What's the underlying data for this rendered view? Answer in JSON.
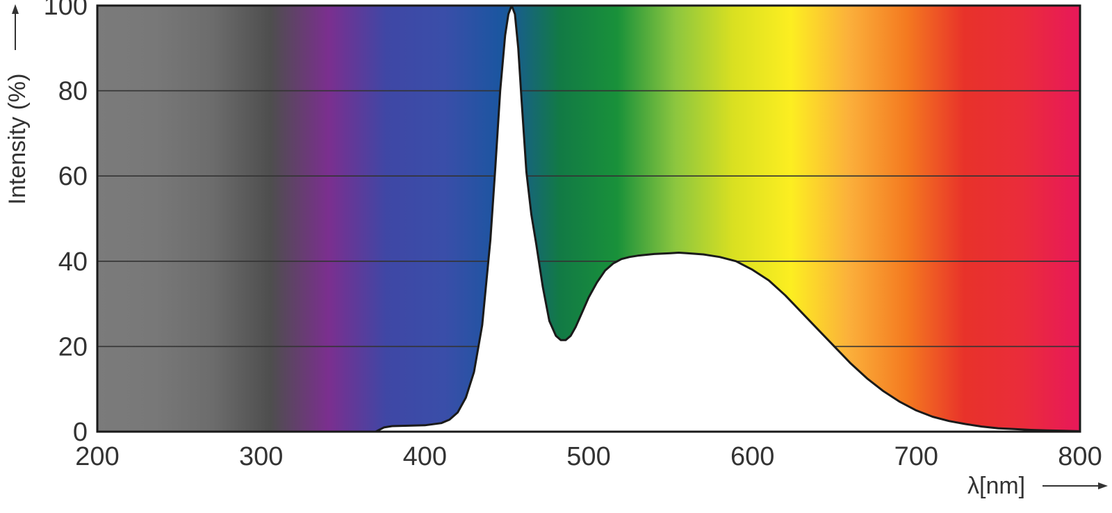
{
  "chart_data": {
    "type": "area",
    "title": "",
    "xlabel": "λ[nm]",
    "ylabel": "Intensity (%)",
    "xlim": [
      200,
      800
    ],
    "ylim": [
      0,
      100
    ],
    "grid": true,
    "x_ticks": [
      200,
      300,
      400,
      500,
      600,
      700,
      800
    ],
    "y_ticks": [
      0,
      20,
      40,
      60,
      80,
      100
    ],
    "series": [
      {
        "x": [
          370,
          375,
          380,
          390,
          400,
          410,
          415,
          420,
          425,
          430,
          435,
          440,
          443,
          446,
          449,
          451,
          453,
          455,
          457,
          459,
          462,
          465,
          468,
          472,
          476,
          480,
          483,
          486,
          489,
          492,
          496,
          500,
          505,
          510,
          515,
          520,
          525,
          530,
          540,
          550,
          555,
          560,
          570,
          580,
          590,
          600,
          610,
          620,
          630,
          640,
          650,
          660,
          670,
          680,
          690,
          700,
          710,
          720,
          730,
          740,
          750,
          760,
          770,
          780,
          790,
          800
        ],
        "y": [
          0,
          1.0,
          1.3,
          1.4,
          1.5,
          2.0,
          2.8,
          4.5,
          8.0,
          14.0,
          25.0,
          45.0,
          62.0,
          80.0,
          93.0,
          98.0,
          100.0,
          98.0,
          90.0,
          78.0,
          61.0,
          51.0,
          44.0,
          34.0,
          26.0,
          22.5,
          21.5,
          21.5,
          22.5,
          24.5,
          28.0,
          31.5,
          35.0,
          37.8,
          39.5,
          40.5,
          41.0,
          41.3,
          41.7,
          41.9,
          42.0,
          41.9,
          41.6,
          41.0,
          40.0,
          38.0,
          35.5,
          32.0,
          28.0,
          24.0,
          20.0,
          16.0,
          12.5,
          9.5,
          7.0,
          5.0,
          3.5,
          2.5,
          1.8,
          1.2,
          0.8,
          0.6,
          0.4,
          0.3,
          0.2,
          0.1
        ]
      }
    ]
  },
  "colors": {
    "background_spectrum": [
      "#7b7b7b",
      "#787878",
      "#6c6c6c",
      "#4e4e4e",
      "#7b2f8f",
      "#3f47a5",
      "#3a4ea9",
      "#1a56a0",
      "#127a45",
      "#19913a",
      "#8cc63f",
      "#d9e021",
      "#fcee21",
      "#fbb03b",
      "#f47a20",
      "#e8322a",
      "#ea2c3b",
      "#e8185a"
    ],
    "grid": "#333333",
    "curve_fill": "#ffffff",
    "curve_stroke": "#1a1a1a"
  }
}
